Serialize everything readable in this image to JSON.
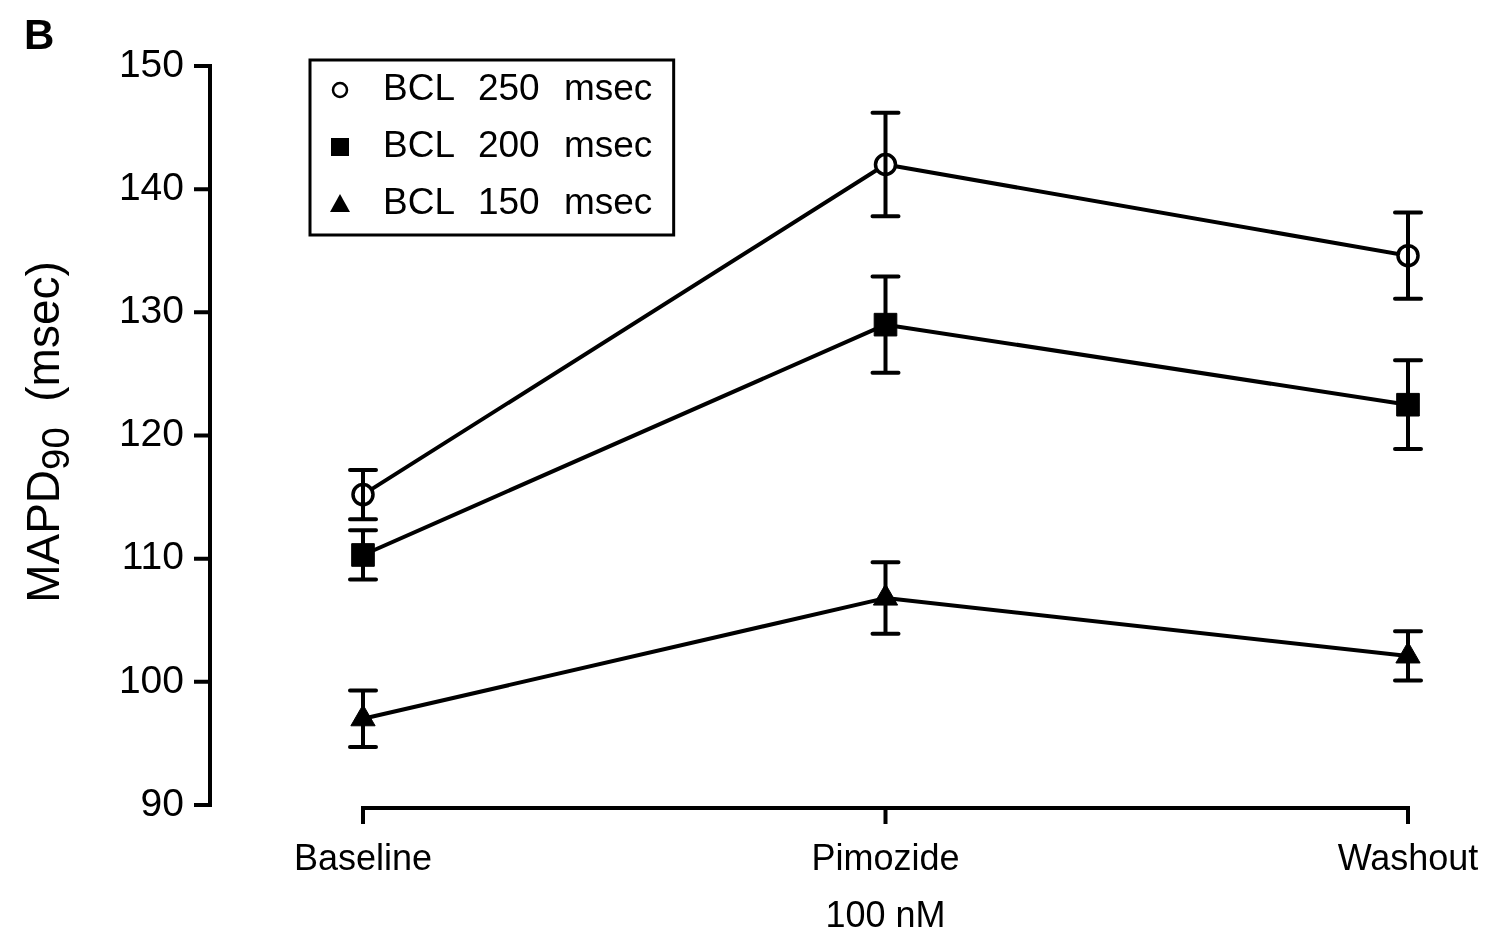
{
  "chart_data": {
    "type": "line",
    "categories": [
      "Baseline",
      "Pimozide\n100 nM",
      "Washout"
    ],
    "ylabel": "MAPD$_{90}$  (msec)",
    "ylim": [
      90,
      150
    ],
    "yticks": [
      90,
      100,
      110,
      120,
      130,
      140,
      150
    ],
    "legend": "top left",
    "line_style": "solid",
    "annotations": [
      "B"
    ],
    "series": [
      {
        "name": "BCL 250 msec",
        "color": "#000000",
        "marker": "circle",
        "values": [
          115.2,
          142.0,
          134.6
        ],
        "errors": [
          2.0,
          4.2,
          3.5
        ]
      },
      {
        "name": "BCL 200 msec",
        "color": "#000000",
        "marker": "square",
        "values": [
          110.3,
          129.0,
          122.5
        ],
        "errors": [
          2.0,
          3.9,
          3.6
        ]
      },
      {
        "name": "BCL 150 msec",
        "color": "#000000",
        "marker": "triangle",
        "values": [
          97.0,
          106.8,
          102.1
        ],
        "errors": [
          2.3,
          2.9,
          2.0
        ]
      }
    ]
  }
}
